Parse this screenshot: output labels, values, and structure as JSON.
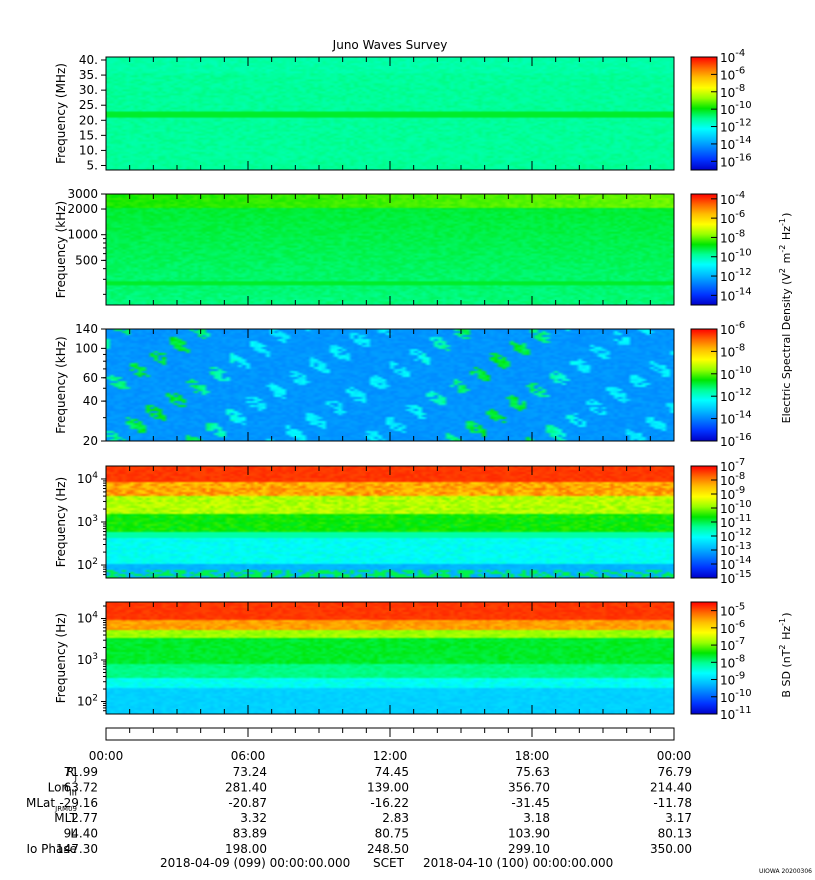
{
  "title": "Juno Waves Survey",
  "credit": "UIOWA 20200306",
  "colors": {
    "colormap": [
      "#0000c8",
      "#0032ff",
      "#0078ff",
      "#00beff",
      "#00ffff",
      "#00ff96",
      "#00e600",
      "#96ff00",
      "#ffff00",
      "#ffbe00",
      "#ff6400",
      "#ff0000"
    ]
  },
  "chart_data": [
    {
      "type": "heatmap",
      "name": "panel-1",
      "ylabel": "Frequency (MHz)",
      "yscale": "linear",
      "ylim": [
        3.5,
        41
      ],
      "yticks": [
        {
          "v": 5,
          "label": "5."
        },
        {
          "v": 10,
          "label": "10."
        },
        {
          "v": 15,
          "label": "15."
        },
        {
          "v": 20,
          "label": "20."
        },
        {
          "v": 25,
          "label": "25."
        },
        {
          "v": 30,
          "label": "30."
        },
        {
          "v": 35,
          "label": "35."
        },
        {
          "v": 40,
          "label": "40."
        }
      ],
      "colorbar": {
        "scale": "log",
        "range_exp": [
          -17,
          -4
        ],
        "tick_labels": [
          "10-16",
          "10-14",
          "10-12",
          "10-10",
          "10-8",
          "10-6",
          "10-4"
        ],
        "tick_exps": [
          -16,
          -14,
          -12,
          -10,
          -8,
          -6,
          -4
        ]
      }
    },
    {
      "type": "heatmap",
      "name": "panel-2",
      "ylabel": "Frequency (kHz)",
      "yscale": "log",
      "ylim": [
        150,
        3000
      ],
      "yticks": [
        {
          "v": 500,
          "label": "500"
        },
        {
          "v": 1000,
          "label": "1000"
        },
        {
          "v": 2000,
          "label": "2000"
        },
        {
          "v": 3000,
          "label": "3000"
        }
      ],
      "colorbar": {
        "scale": "log",
        "range_exp": [
          -15,
          -3.5
        ],
        "tick_labels": [
          "10-14",
          "10-12",
          "10-10",
          "10-8",
          "10-6",
          "10-4"
        ],
        "tick_exps": [
          -14,
          -12,
          -10,
          -8,
          -6,
          -4
        ]
      }
    },
    {
      "type": "heatmap",
      "name": "panel-3",
      "ylabel": "Frequency (kHz)",
      "yscale": "log",
      "ylim": [
        20,
        140
      ],
      "yticks": [
        {
          "v": 20,
          "label": "20"
        },
        {
          "v": 40,
          "label": "40"
        },
        {
          "v": 60,
          "label": "60"
        },
        {
          "v": 100,
          "label": "100"
        },
        {
          "v": 140,
          "label": "140"
        }
      ],
      "colorbar": {
        "scale": "log",
        "range_exp": [
          -16,
          -6
        ],
        "tick_labels": [
          "10-16",
          "10-14",
          "10-12",
          "10-10",
          "10-8",
          "10-6"
        ],
        "tick_exps": [
          -16,
          -14,
          -12,
          -10,
          -8,
          -6
        ]
      }
    },
    {
      "type": "heatmap",
      "name": "panel-4",
      "ylabel": "Frequency (Hz)",
      "yscale": "log",
      "ylim": [
        50,
        20000
      ],
      "yticks": [
        {
          "v": 100,
          "label": "10^2"
        },
        {
          "v": 1000,
          "label": "10^3"
        },
        {
          "v": 10000,
          "label": "10^4"
        }
      ],
      "colorbar": {
        "scale": "log",
        "range_exp": [
          -15,
          -7
        ],
        "tick_labels": [
          "10-15",
          "10-14",
          "10-13",
          "10-12",
          "10-11",
          "10-10",
          "10-9",
          "10-8",
          "10-7"
        ],
        "tick_exps": [
          -15,
          -14,
          -13,
          -12,
          -11,
          -10,
          -9,
          -8,
          -7
        ]
      }
    },
    {
      "type": "heatmap",
      "name": "panel-5",
      "ylabel": "Frequency (Hz)",
      "yscale": "log",
      "ylim": [
        50,
        25000
      ],
      "yticks": [
        {
          "v": 100,
          "label": "10^2"
        },
        {
          "v": 1000,
          "label": "10^3"
        },
        {
          "v": 10000,
          "label": "10^4"
        }
      ],
      "colorbar": {
        "scale": "log",
        "range_exp": [
          -11,
          -4.5
        ],
        "tick_labels": [
          "10-11",
          "10-10",
          "10-9",
          "10-8",
          "10-7",
          "10-6",
          "10-5"
        ],
        "tick_exps": [
          -11,
          -10,
          -9,
          -8,
          -7,
          -6,
          -5
        ]
      }
    }
  ],
  "side_labels": {
    "electric": "Electric Spectral Density (V^2 m^-2 Hz^-1)",
    "magnetic": "B SD (nT^2 Hz^-1)"
  },
  "time_axis": {
    "ticks": [
      "00:00",
      "06:00",
      "12:00",
      "18:00",
      "00:00"
    ],
    "minor_per_major": 6
  },
  "ephemeris": {
    "rows": [
      {
        "label": "Rj",
        "values": [
          "71.99",
          "73.24",
          "74.45",
          "75.63",
          "76.79"
        ]
      },
      {
        "label": "Lon_III",
        "values": [
          "63.72",
          "281.40",
          "139.00",
          "356.70",
          "214.40"
        ]
      },
      {
        "label": "MLat_JRM09",
        "values": [
          "-29.16",
          "-20.87",
          "-16.22",
          "-31.45",
          "-11.78"
        ]
      },
      {
        "label": "MLT",
        "values": [
          "2.77",
          "3.32",
          "2.83",
          "3.18",
          "3.17"
        ]
      },
      {
        "label": "L",
        "values": [
          "94.40",
          "83.89",
          "80.75",
          "103.90",
          "80.13"
        ]
      },
      {
        "label": "Io Phase",
        "values": [
          "147.30",
          "198.00",
          "248.50",
          "299.10",
          "350.00"
        ]
      }
    ]
  },
  "footer": {
    "start": "2018-04-09 (099) 00:00:00.000",
    "axis_name": "SCET",
    "end": "2018-04-10 (100) 00:00:00.000"
  }
}
